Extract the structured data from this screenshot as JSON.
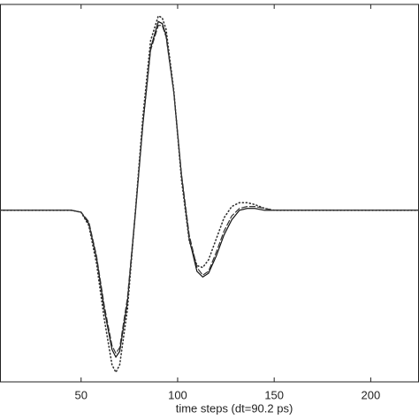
{
  "chart_data": {
    "type": "line",
    "xlabel": "time steps (dt=90.2 ps)",
    "x": [
      8,
      20,
      30,
      40,
      45,
      50,
      54,
      58,
      62,
      66,
      68,
      70,
      74,
      78,
      82,
      86,
      90,
      92,
      94,
      98,
      102,
      106,
      110,
      113,
      116,
      120,
      124,
      128,
      132,
      136,
      140,
      145,
      150,
      160,
      170,
      180,
      200,
      225
    ],
    "series": [
      {
        "color": "#111111",
        "style": "solid",
        "values": [
          0,
          0,
          0,
          0,
          0,
          -0.01,
          -0.07,
          -0.25,
          -0.52,
          -0.73,
          -0.77,
          -0.74,
          -0.48,
          -0.03,
          0.45,
          0.85,
          0.99,
          0.98,
          0.92,
          0.62,
          0.18,
          -0.15,
          -0.32,
          -0.35,
          -0.33,
          -0.24,
          -0.13,
          -0.05,
          0.0,
          0.01,
          0.01,
          0.0,
          0,
          0,
          0,
          0,
          0,
          0
        ]
      },
      {
        "color": "#333333",
        "style": "dashed",
        "values": [
          0,
          0,
          0,
          0,
          0,
          -0.01,
          -0.06,
          -0.24,
          -0.5,
          -0.71,
          -0.75,
          -0.72,
          -0.46,
          -0.02,
          0.45,
          0.84,
          0.97,
          0.97,
          0.91,
          0.62,
          0.19,
          -0.13,
          -0.3,
          -0.34,
          -0.32,
          -0.22,
          -0.11,
          -0.03,
          0.01,
          0.02,
          0.02,
          0.01,
          0,
          0,
          0,
          0,
          0,
          0
        ]
      },
      {
        "color": "#333333",
        "style": "dotted",
        "values": [
          0,
          0,
          0,
          0,
          0,
          -0.01,
          -0.08,
          -0.28,
          -0.57,
          -0.81,
          -0.85,
          -0.81,
          -0.52,
          -0.02,
          0.49,
          0.89,
          1.02,
          1.01,
          0.95,
          0.63,
          0.16,
          -0.16,
          -0.29,
          -0.3,
          -0.26,
          -0.15,
          -0.04,
          0.02,
          0.04,
          0.04,
          0.03,
          0.01,
          0,
          0,
          0,
          0,
          0,
          0
        ]
      }
    ],
    "xlim": [
      8,
      225
    ],
    "xticks": [
      50,
      100,
      150,
      200
    ],
    "ylim": [
      -0.9,
      1.08
    ]
  }
}
